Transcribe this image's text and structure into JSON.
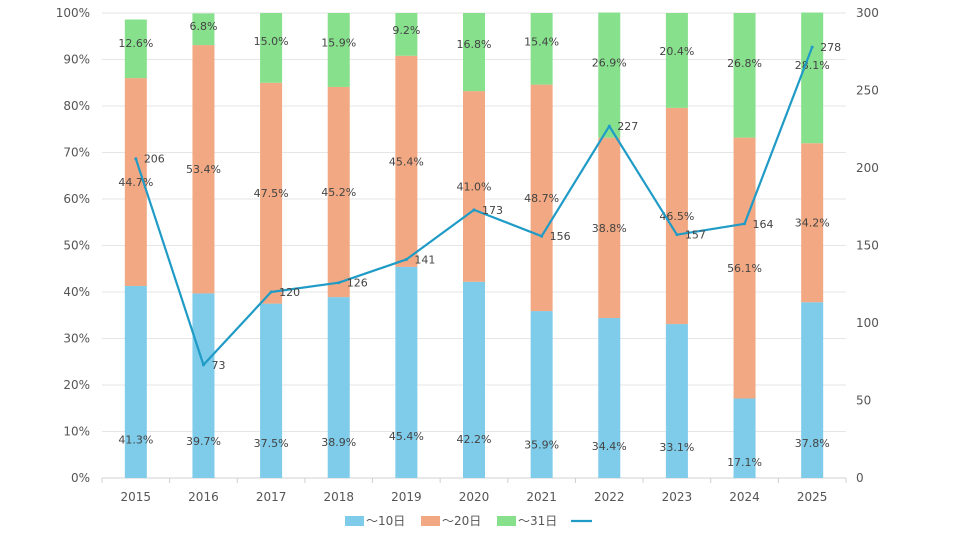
{
  "chart_data": {
    "type": "bar",
    "stacked": true,
    "categories": [
      "2015",
      "2016",
      "2017",
      "2018",
      "2019",
      "2020",
      "2021",
      "2022",
      "2023",
      "2024",
      "2025"
    ],
    "series": [
      {
        "name": "～10日",
        "color": "#7ecbea",
        "values": [
          41.3,
          39.7,
          37.5,
          38.9,
          45.4,
          42.2,
          35.9,
          34.4,
          33.1,
          17.1,
          37.8
        ],
        "labels": [
          "41.3%",
          "39.7%",
          "37.5%",
          "38.9%",
          "45.4%",
          "42.2%",
          "35.9%",
          "34.4%",
          "33.1%",
          "17.1%",
          "37.8%"
        ]
      },
      {
        "name": "～20日",
        "color": "#f2a882",
        "values": [
          44.7,
          53.4,
          47.5,
          45.2,
          45.4,
          41.0,
          48.7,
          38.8,
          46.5,
          56.1,
          34.2
        ],
        "labels": [
          "44.7%",
          "53.4%",
          "47.5%",
          "45.2%",
          "45.4%",
          "41.0%",
          "48.7%",
          "38.8%",
          "46.5%",
          "56.1%",
          "34.2%"
        ]
      },
      {
        "name": "～31日",
        "color": "#86e08c",
        "values": [
          12.6,
          6.8,
          15.0,
          15.9,
          9.2,
          16.8,
          15.4,
          26.9,
          20.4,
          26.8,
          28.1
        ],
        "labels": [
          "12.6%",
          "6.8%",
          "15.0%",
          "15.9%",
          "9.2%",
          "16.8%",
          "15.4%",
          "26.9%",
          "20.4%",
          "26.8%",
          "28.1%"
        ]
      }
    ],
    "line": {
      "name": "",
      "color": "#1f9bc6",
      "values": [
        206,
        73,
        120,
        126,
        141,
        173,
        156,
        227,
        157,
        164,
        278
      ],
      "labels": [
        "206",
        "73",
        "120",
        "126",
        "141",
        "173",
        "156",
        "227",
        "157",
        "164",
        "278"
      ]
    },
    "y_left": {
      "range": [
        0,
        100
      ],
      "ticks": [
        "0%",
        "10%",
        "20%",
        "30%",
        "40%",
        "50%",
        "60%",
        "70%",
        "80%",
        "90%",
        "100%"
      ]
    },
    "y_right": {
      "range": [
        0,
        300
      ],
      "ticks": [
        "0",
        "50",
        "100",
        "150",
        "200",
        "250",
        "300"
      ]
    },
    "grid": true,
    "legend_position": "bottom-center"
  }
}
